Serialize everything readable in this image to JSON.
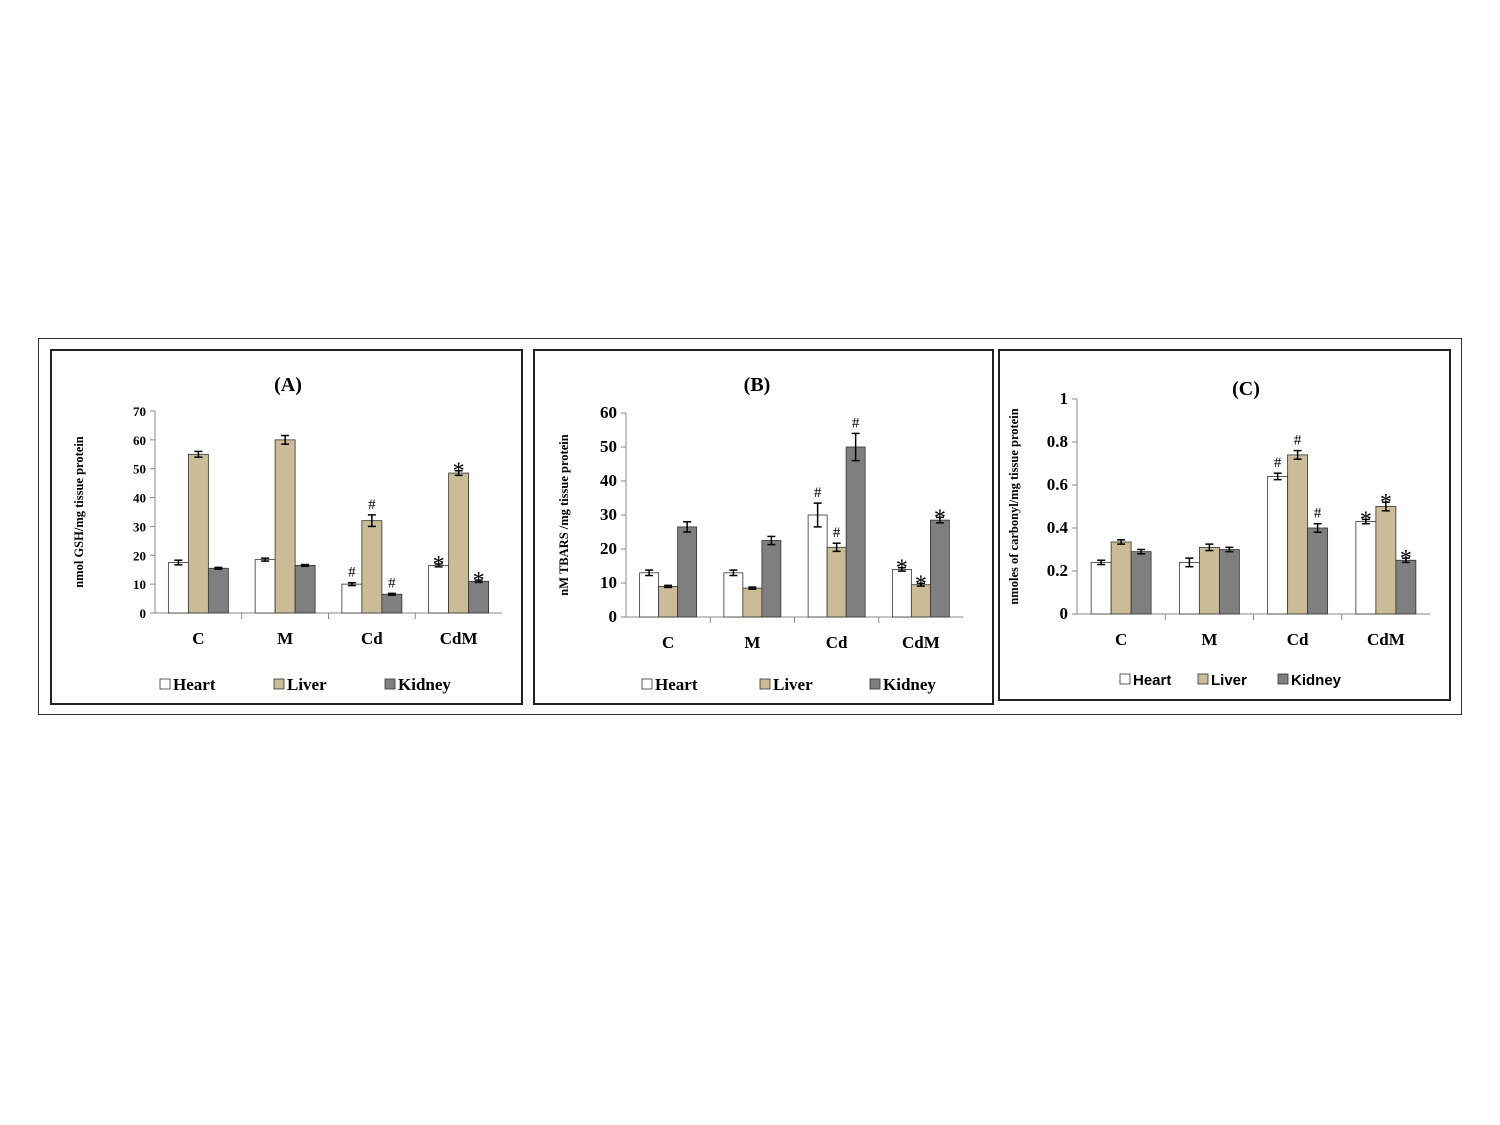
{
  "colors": {
    "heart_fill": "#ffffff",
    "liver_fill": "#c9bc96",
    "kidney_fill": "#7f7f7f",
    "bar_stroke": "#333333"
  },
  "chart_data": [
    {
      "type": "bar",
      "title": "(A)",
      "ylabel": "nmol GSH/mg tissue protein",
      "xlabel": "",
      "categories": [
        "C",
        "M",
        "Cd",
        "CdM"
      ],
      "ylim": [
        0,
        70
      ],
      "yticks": [
        0,
        10,
        20,
        30,
        40,
        50,
        60,
        70
      ],
      "ytick_labels": [
        "0",
        "10",
        "20",
        "30",
        "40",
        "50",
        "60",
        "70"
      ],
      "legend": "bottom",
      "legend_labels": [
        "Heart",
        "Liver",
        "Kidney"
      ],
      "series": [
        {
          "name": "Heart",
          "values": [
            17.5,
            18.5,
            10,
            16.5
          ],
          "errors": [
            0.8,
            0.5,
            0.5,
            0.5
          ],
          "markers": [
            "",
            "",
            "#",
            "*"
          ]
        },
        {
          "name": "Liver",
          "values": [
            55,
            60,
            32,
            48.5
          ],
          "errors": [
            1,
            1.5,
            2,
            0.8
          ],
          "markers": [
            "",
            "",
            "#",
            "*"
          ]
        },
        {
          "name": "Kidney",
          "values": [
            15.5,
            16.5,
            6.5,
            11
          ],
          "errors": [
            0.3,
            0.3,
            0.3,
            0.4
          ],
          "markers": [
            "",
            "",
            "#",
            "*"
          ]
        }
      ]
    },
    {
      "type": "bar",
      "title": "(B)",
      "ylabel": "nM TBARS /mg tissue protein",
      "xlabel": "",
      "categories": [
        "C",
        "M",
        "Cd",
        "CdM"
      ],
      "ylim": [
        0,
        60
      ],
      "yticks": [
        0,
        10,
        20,
        30,
        40,
        50,
        60
      ],
      "ytick_labels": [
        "0",
        "10",
        "20",
        "30",
        "40",
        "50",
        "60"
      ],
      "legend": "bottom",
      "legend_labels": [
        "Heart",
        "Liver",
        "Kidney"
      ],
      "series": [
        {
          "name": "Heart",
          "values": [
            13,
            13,
            30,
            14
          ],
          "errors": [
            0.8,
            0.8,
            3.5,
            0.5
          ],
          "markers": [
            "",
            "",
            "#",
            "*"
          ]
        },
        {
          "name": "Liver",
          "values": [
            9,
            8.5,
            20.5,
            9.5
          ],
          "errors": [
            0.3,
            0.3,
            1.2,
            0.4
          ],
          "markers": [
            "",
            "",
            "#",
            "*"
          ]
        },
        {
          "name": "Kidney",
          "values": [
            26.5,
            22.5,
            50,
            28.5
          ],
          "errors": [
            1.5,
            1.2,
            4,
            0.8
          ],
          "markers": [
            "",
            "",
            "#",
            "*"
          ]
        }
      ]
    },
    {
      "type": "bar",
      "title": "(C)",
      "ylabel": "nmoles of carbonyl/mg tissue protein",
      "xlabel": "",
      "categories": [
        "C",
        "M",
        "Cd",
        "CdM"
      ],
      "ylim": [
        0,
        1
      ],
      "yticks": [
        0,
        0.2,
        0.4,
        0.6,
        0.8,
        1
      ],
      "ytick_labels": [
        "0",
        "0.2",
        "0.4",
        "0.6",
        "0.8",
        "1"
      ],
      "legend": "bottom",
      "legend_labels": [
        "Heart",
        "Liver",
        "Kidney"
      ],
      "series": [
        {
          "name": "Heart",
          "values": [
            0.24,
            0.24,
            0.64,
            0.43
          ],
          "errors": [
            0.01,
            0.02,
            0.015,
            0.01
          ],
          "markers": [
            "",
            "",
            "#",
            "*"
          ]
        },
        {
          "name": "Liver",
          "values": [
            0.335,
            0.31,
            0.74,
            0.5
          ],
          "errors": [
            0.01,
            0.015,
            0.02,
            0.02
          ],
          "markers": [
            "",
            "",
            "#",
            "*"
          ]
        },
        {
          "name": "Kidney",
          "values": [
            0.29,
            0.3,
            0.4,
            0.25
          ],
          "errors": [
            0.01,
            0.01,
            0.02,
            0.01
          ],
          "markers": [
            "",
            "",
            "#",
            "*"
          ]
        }
      ]
    }
  ]
}
